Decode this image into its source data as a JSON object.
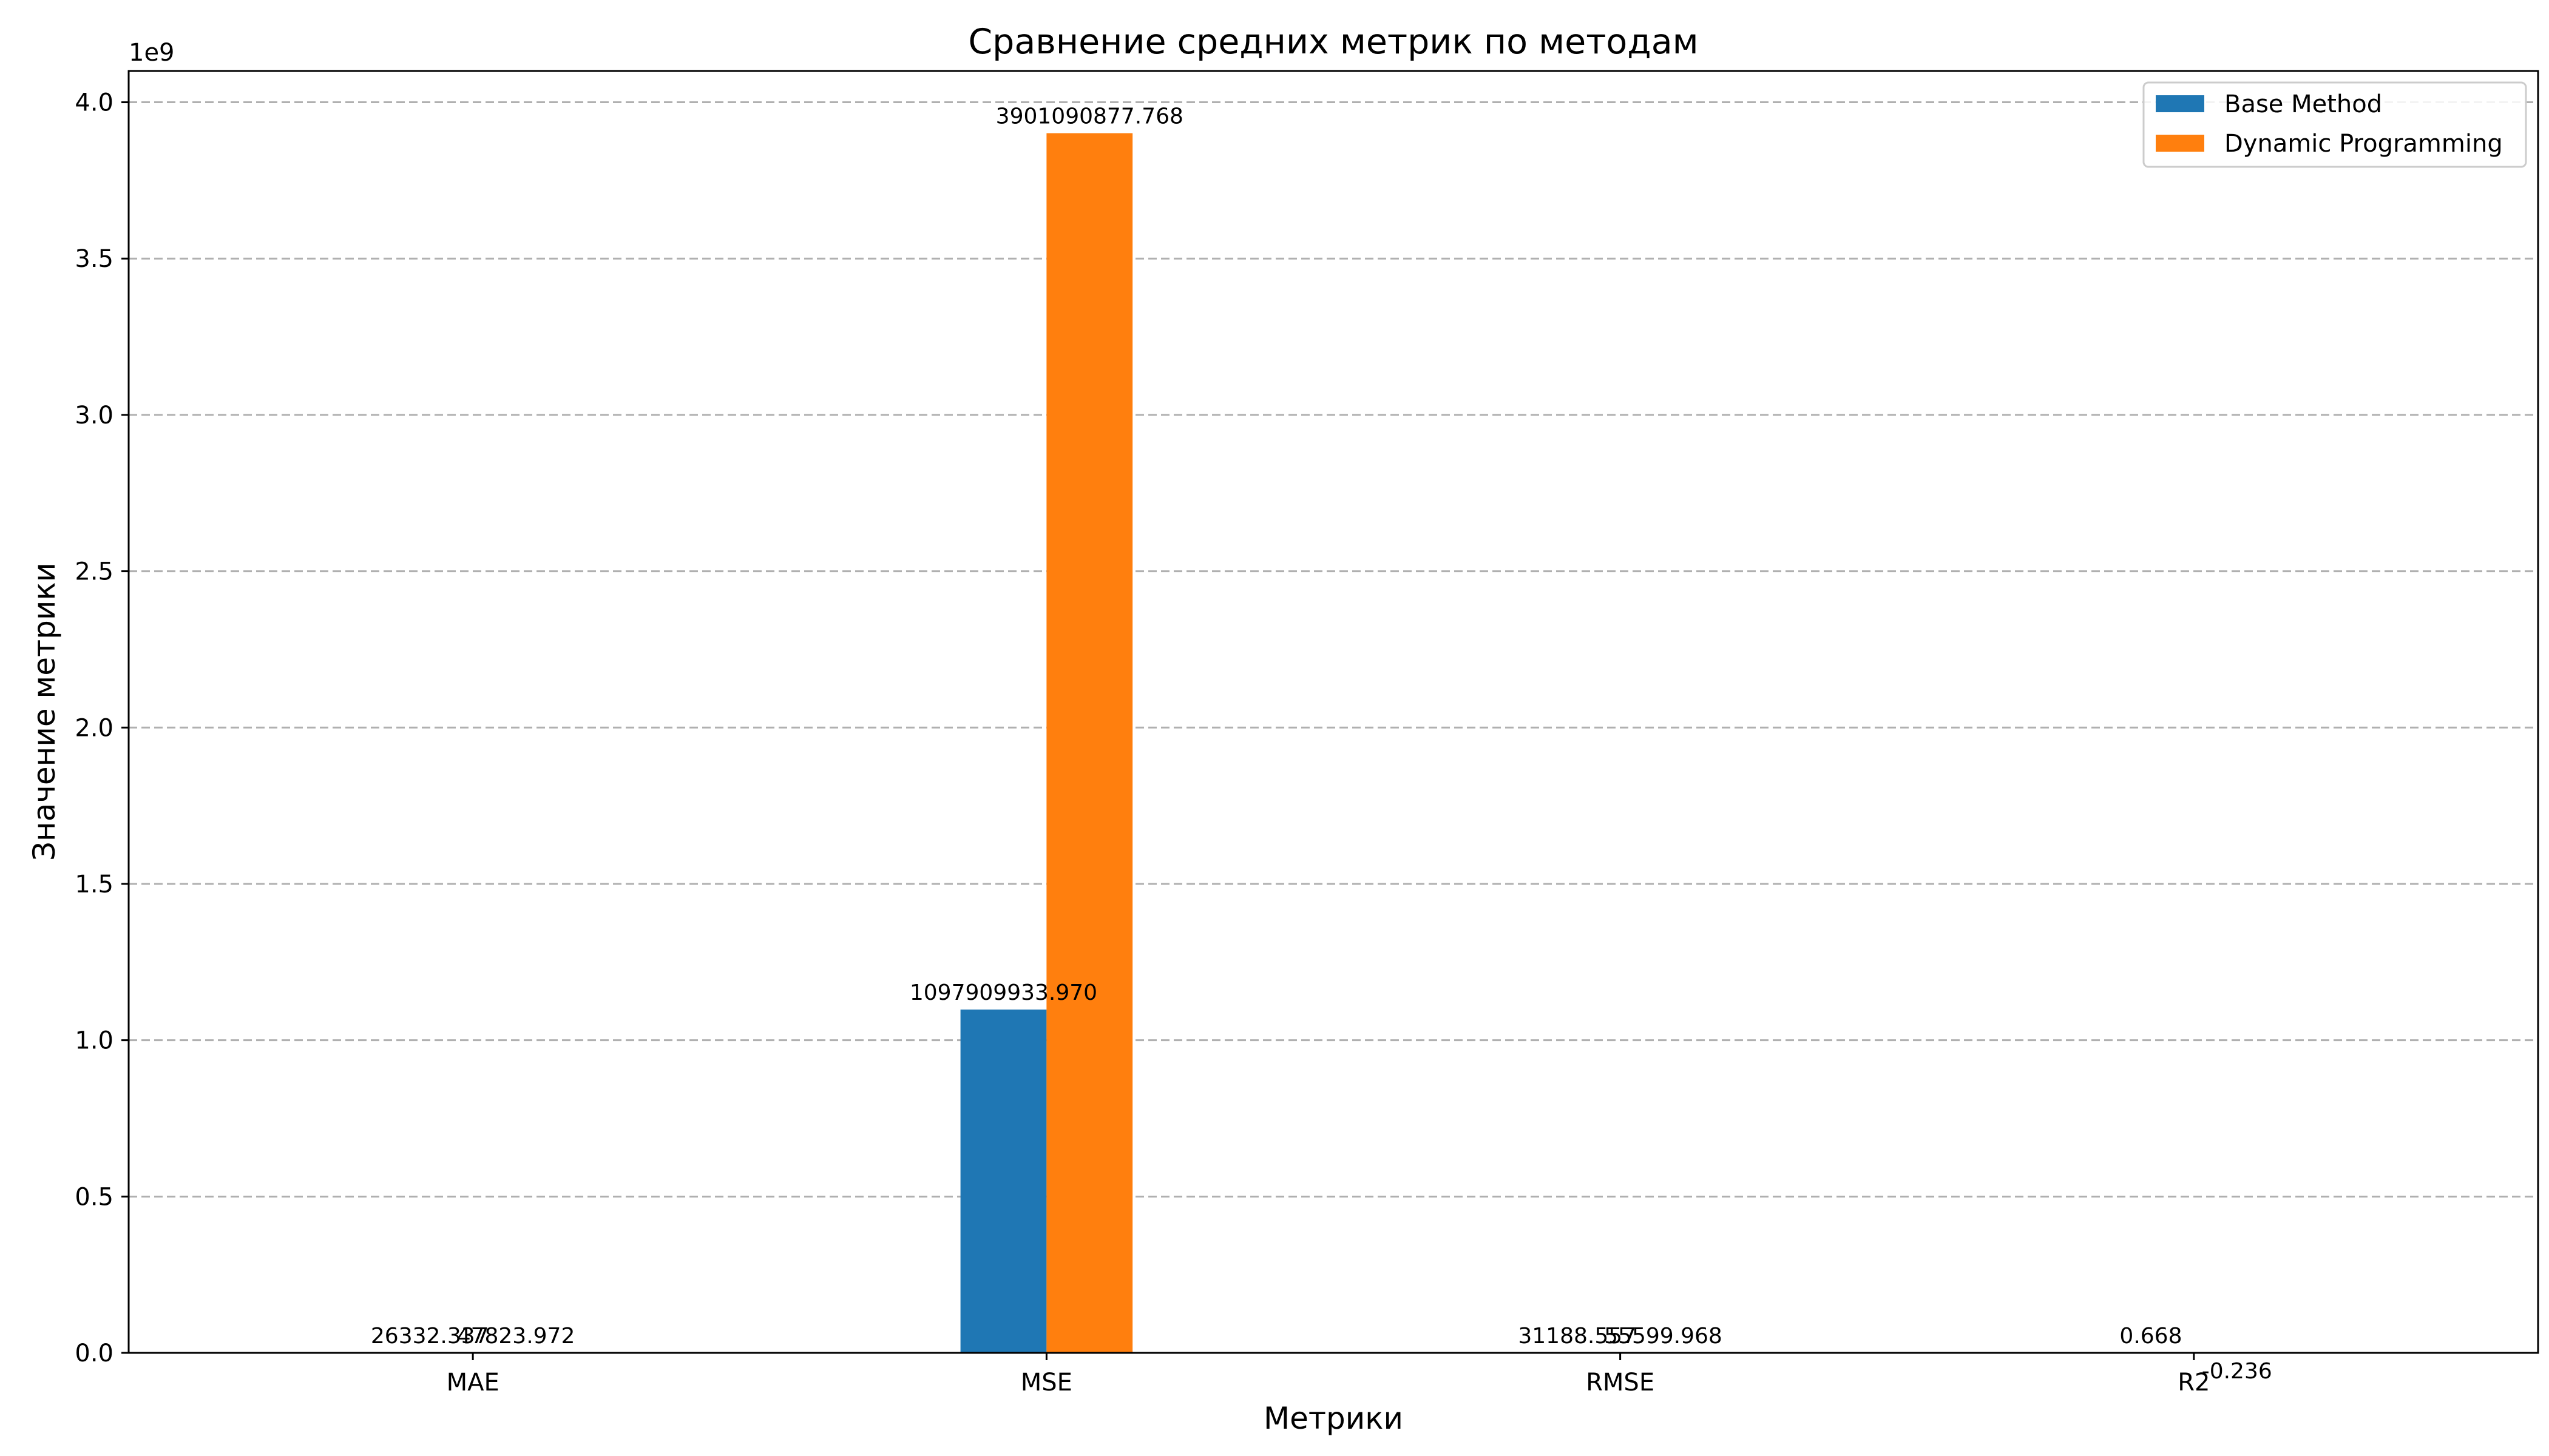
{
  "chart_data": {
    "type": "bar",
    "title": "Сравнение средних метрик по методам",
    "xlabel": "Метрики",
    "ylabel": "Значение метрики",
    "y_scale_label": "1e9",
    "categories": [
      "MAE",
      "MSE",
      "RMSE",
      "R2"
    ],
    "series": [
      {
        "name": "Base Method",
        "color": "#1f77b4",
        "values": [
          26332.337,
          1097909933.97,
          31188.557,
          0.668
        ],
        "labels": [
          "26332.337",
          "1097909933.970",
          "31188.557",
          "0.668"
        ]
      },
      {
        "name": "Dynamic Programming",
        "color": "#ff7f0e",
        "values": [
          47823.972,
          3901090877.768,
          55599.968,
          -0.236
        ],
        "labels": [
          "47823.972",
          "3901090877.768",
          "55599.968",
          "-0.236"
        ]
      }
    ],
    "ylim": [
      0,
      4100000000
    ],
    "y_ticks": [
      0,
      500000000,
      1000000000,
      1500000000,
      2000000000,
      2500000000,
      3000000000,
      3500000000,
      4000000000
    ],
    "y_tick_labels": [
      "0.0",
      "0.5",
      "1.0",
      "1.5",
      "2.0",
      "2.5",
      "3.0",
      "3.5",
      "4.0"
    ],
    "grid": "y-dashed",
    "legend_position": "top-right"
  }
}
